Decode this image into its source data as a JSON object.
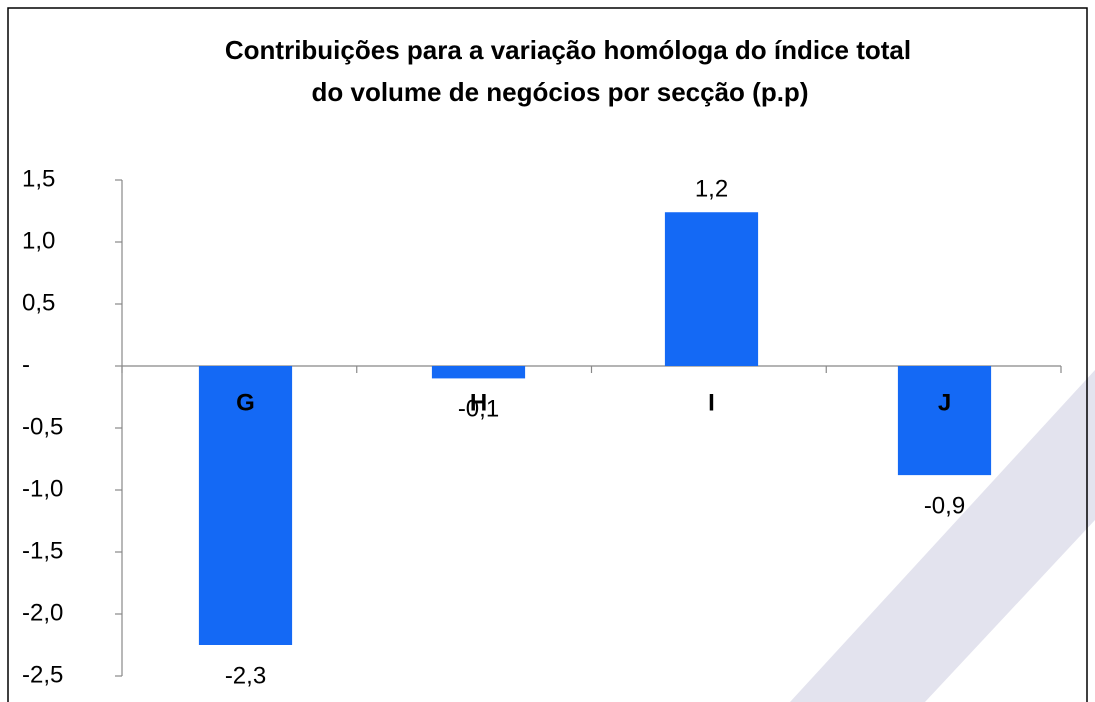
{
  "chart_data": {
    "type": "bar",
    "title": [
      "Contribuições para a variação homóloga do índice total",
      "do volume de negócios por secção (p.p)"
    ],
    "categories": [
      "G",
      "H",
      "I",
      "J"
    ],
    "values": [
      -2.25,
      -0.1,
      1.24,
      -0.88
    ],
    "value_labels": [
      "-2,3",
      "-0,1",
      "1,2",
      "-0,9"
    ],
    "color": "#1469f5",
    "ylim": [
      -2.5,
      1.5
    ],
    "yticks": [
      {
        "value": -2.5,
        "label": "-2,5"
      },
      {
        "value": -2,
        "label": "-2,0"
      },
      {
        "value": -1.5,
        "label": "-1,5"
      },
      {
        "value": -1,
        "label": "-1,0"
      },
      {
        "value": -0.5,
        "label": "-0,5"
      },
      {
        "value": 0,
        "label": "-"
      },
      {
        "value": 0.5,
        "label": "0,5"
      },
      {
        "value": 1,
        "label": "1,0"
      },
      {
        "value": 1.5,
        "label": "1,5"
      }
    ],
    "grid": false
  }
}
